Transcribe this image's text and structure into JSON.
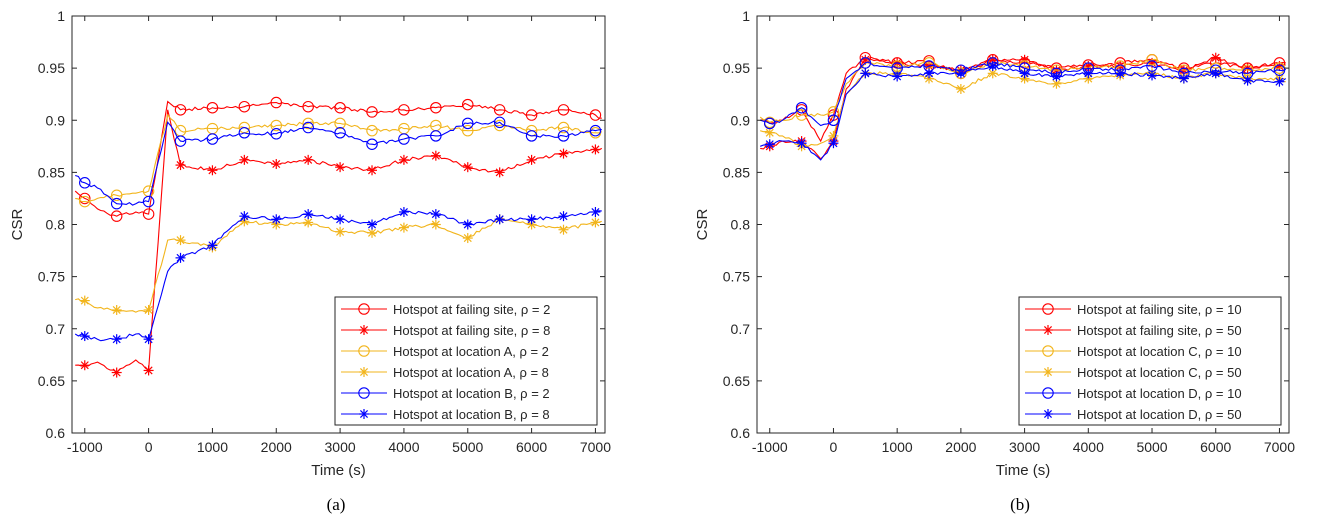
{
  "figure": {
    "captions": [
      "(a)",
      "(b)"
    ]
  },
  "chart_data": [
    {
      "type": "line",
      "panel_label": "(a)",
      "xlabel": "Time (s)",
      "ylabel": "CSR",
      "xlim": [
        -1200,
        7150
      ],
      "ylim": [
        0.6,
        1.0
      ],
      "xticks": [
        -1000,
        0,
        1000,
        2000,
        3000,
        4000,
        5000,
        6000,
        7000
      ],
      "yticks": [
        0.6,
        0.65,
        0.7,
        0.75,
        0.8,
        0.85,
        0.9,
        0.95,
        1.0
      ],
      "ytick_labels": [
        "0.6",
        "0.65",
        "0.7",
        "0.75",
        "0.8",
        "0.85",
        "0.9",
        "0.95",
        "1"
      ],
      "grid": false,
      "legend_position": "bottom-right",
      "series": [
        {
          "name": "Hotspot at failing site, ρ = 2",
          "color": "#ff0000",
          "marker": "circle",
          "x": [
            -1150,
            -1000,
            -800,
            -500,
            -200,
            0,
            300,
            500,
            1000,
            1500,
            2000,
            2500,
            3000,
            3500,
            4000,
            4500,
            5000,
            5500,
            6000,
            6500,
            7000,
            7100
          ],
          "y": [
            0.832,
            0.825,
            0.815,
            0.808,
            0.812,
            0.81,
            0.918,
            0.91,
            0.912,
            0.913,
            0.917,
            0.913,
            0.912,
            0.908,
            0.91,
            0.912,
            0.915,
            0.91,
            0.905,
            0.91,
            0.905,
            0.902
          ]
        },
        {
          "name": "Hotspot at failing site, ρ = 8",
          "color": "#ff0000",
          "marker": "asterisk",
          "x": [
            -1150,
            -1000,
            -800,
            -500,
            -200,
            0,
            300,
            500,
            1000,
            1500,
            2000,
            2500,
            3000,
            3500,
            4000,
            4500,
            5000,
            5500,
            6000,
            6500,
            7000,
            7100
          ],
          "y": [
            0.665,
            0.665,
            0.668,
            0.658,
            0.67,
            0.66,
            0.91,
            0.857,
            0.852,
            0.862,
            0.858,
            0.862,
            0.855,
            0.852,
            0.862,
            0.866,
            0.855,
            0.85,
            0.862,
            0.868,
            0.872,
            0.873
          ]
        },
        {
          "name": "Hotspot at location A, ρ = 2",
          "color": "#f2b51c",
          "marker": "circle",
          "x": [
            -1150,
            -1000,
            -800,
            -500,
            -200,
            0,
            300,
            500,
            1000,
            1500,
            2000,
            2500,
            3000,
            3500,
            4000,
            4500,
            5000,
            5500,
            6000,
            6500,
            7000,
            7100
          ],
          "y": [
            0.825,
            0.822,
            0.825,
            0.828,
            0.83,
            0.832,
            0.905,
            0.89,
            0.892,
            0.893,
            0.895,
            0.897,
            0.897,
            0.89,
            0.892,
            0.895,
            0.89,
            0.895,
            0.89,
            0.893,
            0.888,
            0.889
          ]
        },
        {
          "name": "Hotspot at location A, ρ = 8",
          "color": "#f2b51c",
          "marker": "asterisk",
          "x": [
            -1150,
            -1000,
            -800,
            -500,
            -200,
            0,
            300,
            500,
            1000,
            1500,
            2000,
            2500,
            3000,
            3500,
            4000,
            4500,
            5000,
            5500,
            6000,
            6500,
            7000,
            7100
          ],
          "y": [
            0.728,
            0.727,
            0.72,
            0.718,
            0.716,
            0.718,
            0.785,
            0.785,
            0.778,
            0.803,
            0.8,
            0.802,
            0.793,
            0.792,
            0.797,
            0.8,
            0.787,
            0.805,
            0.8,
            0.795,
            0.802,
            0.803
          ]
        },
        {
          "name": "Hotspot at location B, ρ = 2",
          "color": "#0000ff",
          "marker": "circle",
          "x": [
            -1150,
            -1000,
            -800,
            -500,
            -200,
            0,
            300,
            500,
            1000,
            1500,
            2000,
            2500,
            3000,
            3500,
            4000,
            4500,
            5000,
            5500,
            6000,
            6500,
            7000,
            7100
          ],
          "y": [
            0.847,
            0.84,
            0.835,
            0.82,
            0.82,
            0.822,
            0.898,
            0.88,
            0.882,
            0.888,
            0.887,
            0.893,
            0.888,
            0.877,
            0.882,
            0.885,
            0.897,
            0.898,
            0.885,
            0.885,
            0.89,
            0.891
          ]
        },
        {
          "name": "Hotspot at location B, ρ = 8",
          "color": "#0000ff",
          "marker": "asterisk",
          "x": [
            -1150,
            -1000,
            -800,
            -500,
            -200,
            0,
            300,
            500,
            1000,
            1500,
            2000,
            2500,
            3000,
            3500,
            4000,
            4500,
            5000,
            5500,
            6000,
            6500,
            7000,
            7100
          ],
          "y": [
            0.695,
            0.693,
            0.69,
            0.69,
            0.695,
            0.69,
            0.755,
            0.768,
            0.78,
            0.808,
            0.805,
            0.81,
            0.805,
            0.8,
            0.812,
            0.81,
            0.8,
            0.805,
            0.805,
            0.808,
            0.812,
            0.813
          ]
        }
      ]
    },
    {
      "type": "line",
      "panel_label": "(b)",
      "xlabel": "Time (s)",
      "ylabel": "CSR",
      "xlim": [
        -1200,
        7150
      ],
      "ylim": [
        0.6,
        1.0
      ],
      "xticks": [
        -1000,
        0,
        1000,
        2000,
        3000,
        4000,
        5000,
        6000,
        7000
      ],
      "yticks": [
        0.6,
        0.65,
        0.7,
        0.75,
        0.8,
        0.85,
        0.9,
        0.95,
        1.0
      ],
      "ytick_labels": [
        "0.6",
        "0.65",
        "0.7",
        "0.75",
        "0.8",
        "0.85",
        "0.9",
        "0.95",
        "1"
      ],
      "grid": false,
      "legend_position": "bottom-right",
      "series": [
        {
          "name": "Hotspot at failing site, ρ = 10",
          "color": "#ff0000",
          "marker": "circle",
          "x": [
            -1150,
            -1000,
            -800,
            -500,
            -200,
            0,
            200,
            500,
            1000,
            1500,
            2000,
            2500,
            3000,
            3500,
            4000,
            4500,
            5000,
            5500,
            6000,
            6500,
            7000,
            7100
          ],
          "y": [
            0.9,
            0.897,
            0.9,
            0.91,
            0.88,
            0.905,
            0.945,
            0.96,
            0.955,
            0.957,
            0.945,
            0.958,
            0.955,
            0.95,
            0.953,
            0.955,
            0.958,
            0.95,
            0.955,
            0.95,
            0.955,
            0.955
          ]
        },
        {
          "name": "Hotspot at failing site, ρ = 50",
          "color": "#ff0000",
          "marker": "asterisk",
          "x": [
            -1150,
            -1000,
            -800,
            -500,
            -200,
            0,
            200,
            500,
            1000,
            1500,
            2000,
            2500,
            3000,
            3500,
            4000,
            4500,
            5000,
            5500,
            6000,
            6500,
            7000,
            7100
          ],
          "y": [
            0.873,
            0.875,
            0.88,
            0.88,
            0.863,
            0.88,
            0.93,
            0.958,
            0.955,
            0.952,
            0.948,
            0.958,
            0.958,
            0.948,
            0.952,
            0.952,
            0.955,
            0.948,
            0.96,
            0.95,
            0.952,
            0.953
          ]
        },
        {
          "name": "Hotspot at location C, ρ = 10",
          "color": "#f2b51c",
          "marker": "circle",
          "x": [
            -1150,
            -1000,
            -800,
            -500,
            -200,
            0,
            200,
            500,
            1000,
            1500,
            2000,
            2500,
            3000,
            3500,
            4000,
            4500,
            5000,
            5500,
            6000,
            6500,
            7000,
            7100
          ],
          "y": [
            0.903,
            0.898,
            0.9,
            0.905,
            0.905,
            0.908,
            0.935,
            0.955,
            0.952,
            0.955,
            0.945,
            0.955,
            0.952,
            0.948,
            0.95,
            0.952,
            0.958,
            0.948,
            0.95,
            0.948,
            0.95,
            0.95
          ]
        },
        {
          "name": "Hotspot at location C, ρ = 50",
          "color": "#f2b51c",
          "marker": "asterisk",
          "x": [
            -1150,
            -1000,
            -800,
            -500,
            -200,
            0,
            200,
            500,
            1000,
            1500,
            2000,
            2500,
            3000,
            3500,
            4000,
            4500,
            5000,
            5500,
            6000,
            6500,
            7000,
            7100
          ],
          "y": [
            0.89,
            0.888,
            0.885,
            0.875,
            0.878,
            0.885,
            0.925,
            0.945,
            0.945,
            0.94,
            0.93,
            0.945,
            0.94,
            0.935,
            0.94,
            0.943,
            0.945,
            0.94,
            0.945,
            0.94,
            0.94,
            0.937
          ]
        },
        {
          "name": "Hotspot at location D, ρ = 10",
          "color": "#0000ff",
          "marker": "circle",
          "x": [
            -1150,
            -1000,
            -800,
            -500,
            -200,
            0,
            200,
            500,
            1000,
            1500,
            2000,
            2500,
            3000,
            3500,
            4000,
            4500,
            5000,
            5500,
            6000,
            6500,
            7000,
            7100
          ],
          "y": [
            0.9,
            0.897,
            0.9,
            0.912,
            0.895,
            0.9,
            0.94,
            0.955,
            0.95,
            0.952,
            0.948,
            0.955,
            0.95,
            0.945,
            0.95,
            0.948,
            0.952,
            0.945,
            0.948,
            0.945,
            0.948,
            0.949
          ]
        },
        {
          "name": "Hotspot at location D, ρ = 50",
          "color": "#0000ff",
          "marker": "asterisk",
          "x": [
            -1150,
            -1000,
            -800,
            -500,
            -200,
            0,
            200,
            500,
            1000,
            1500,
            2000,
            2500,
            3000,
            3500,
            4000,
            4500,
            5000,
            5500,
            6000,
            6500,
            7000,
            7100
          ],
          "y": [
            0.875,
            0.877,
            0.88,
            0.878,
            0.862,
            0.878,
            0.925,
            0.945,
            0.942,
            0.945,
            0.945,
            0.952,
            0.945,
            0.942,
            0.945,
            0.945,
            0.943,
            0.94,
            0.945,
            0.938,
            0.937,
            0.94
          ]
        }
      ]
    }
  ]
}
